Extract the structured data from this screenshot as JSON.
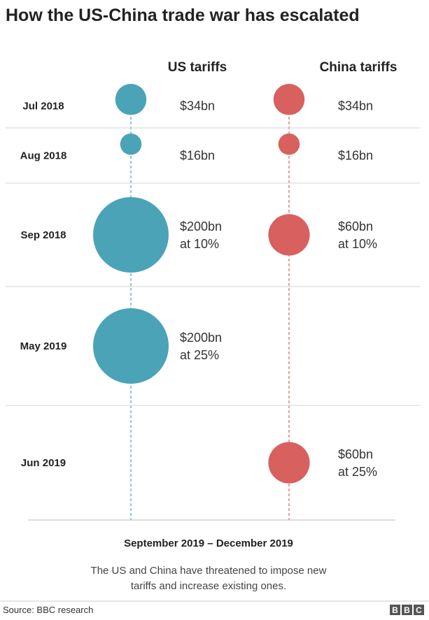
{
  "chart_data": {
    "type": "bubble-timeline",
    "title": "How the US-China trade war has escalated",
    "columns": [
      "US tariffs",
      "China tariffs"
    ],
    "colors": {
      "US tariffs": "#4ba3b8",
      "China tariffs": "#d8605f"
    },
    "rows": [
      {
        "period": "Jul 2018",
        "us": {
          "value": 34,
          "label_lines": [
            "$34bn"
          ]
        },
        "china": {
          "value": 34,
          "label_lines": [
            "$34bn"
          ]
        }
      },
      {
        "period": "Aug 2018",
        "us": {
          "value": 16,
          "label_lines": [
            "$16bn"
          ]
        },
        "china": {
          "value": 16,
          "label_lines": [
            "$16bn"
          ]
        }
      },
      {
        "period": "Sep 2018",
        "us": {
          "value": 200,
          "label_lines": [
            "$200bn",
            "at 10%"
          ]
        },
        "china": {
          "value": 60,
          "label_lines": [
            "$60bn",
            "at 10%"
          ]
        }
      },
      {
        "period": "May 2019",
        "us": {
          "value": 200,
          "label_lines": [
            "$200bn",
            "at 25%"
          ]
        },
        "china": null
      },
      {
        "period": "Jun 2019",
        "us": null,
        "china": {
          "value": 60,
          "label_lines": [
            "$60bn",
            "at 25%"
          ]
        }
      }
    ],
    "units": "$bn"
  },
  "footer": {
    "period": "September 2019 – December 2019",
    "note_lines": [
      "The US and China have threatened to impose new",
      "tariffs and increase existing ones."
    ]
  },
  "source": "Source: BBC research",
  "logo": "BBC"
}
